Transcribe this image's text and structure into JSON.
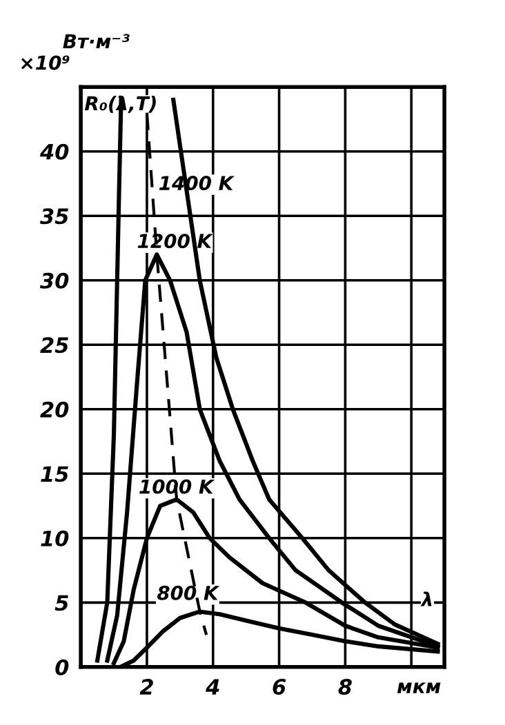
{
  "chart_data": {
    "type": "line",
    "ylabel": "Вт·м⁻³",
    "xlabel": "мкм",
    "annotations": [
      "×10⁹",
      "R₀(λ,T)",
      "λ"
    ],
    "xlim": [
      0,
      11
    ],
    "ylim": [
      0,
      45
    ],
    "xticks": [
      2,
      4,
      6,
      8,
      {
        "value": 10,
        "label": null
      }
    ],
    "yticks": [
      0,
      5,
      10,
      15,
      20,
      25,
      30,
      35,
      40
    ],
    "grid": true,
    "legend": false,
    "marker": "none",
    "series": [
      {
        "name": "1400 K",
        "color": "#000000",
        "line_style": "solid",
        "x": [
          0.5,
          0.8,
          1.0,
          1.15,
          1.22,
          2.0,
          2.8,
          3.2,
          3.6,
          4.1,
          4.6,
          5.2,
          5.7,
          6.7,
          7.5,
          8.6,
          9.5,
          10.8
        ],
        "values": [
          0.5,
          5,
          18,
          36,
          44,
          null,
          44,
          37,
          30,
          24,
          20,
          16,
          13,
          10,
          7.5,
          5,
          3.3,
          1.8
        ]
      },
      {
        "name": "1200 K",
        "color": "#000000",
        "line_style": "solid",
        "x": [
          0.8,
          1.1,
          1.4,
          1.7,
          1.95,
          2.3,
          2.7,
          3.2,
          3.6,
          4.2,
          4.8,
          5.7,
          6.5,
          7.9,
          9,
          10.8
        ],
        "values": [
          0.5,
          4,
          12,
          22,
          30,
          32,
          30,
          26,
          20,
          16,
          13,
          10,
          7.5,
          5,
          3.2,
          1.6
        ]
      },
      {
        "name": "1000 K",
        "color": "#000000",
        "line_style": "solid",
        "x": [
          1.0,
          1.3,
          1.6,
          2.0,
          2.4,
          2.9,
          3.4,
          3.9,
          4.5,
          5.5,
          6.8,
          8,
          9,
          10.8
        ],
        "values": [
          0.3,
          2,
          6,
          10,
          12.5,
          13,
          12,
          10,
          8.5,
          6.5,
          5,
          3.2,
          2.3,
          1.5
        ]
      },
      {
        "name": "800 K",
        "color": "#000000",
        "line_style": "solid",
        "x": [
          1.2,
          1.6,
          2.0,
          2.5,
          3.0,
          3.6,
          4.2,
          5,
          6,
          7,
          8,
          9,
          10.8
        ],
        "values": [
          0,
          0.5,
          1.5,
          2.8,
          3.8,
          4.3,
          4.1,
          3.6,
          3,
          2.5,
          2,
          1.6,
          1.2
        ]
      },
      {
        "color": "#000000",
        "line_style": "dashed",
        "x": [
          2.0,
          2.3,
          2.9,
          3.6,
          3.8
        ],
        "values": [
          43,
          32,
          13,
          4.3,
          2.5
        ]
      }
    ]
  }
}
